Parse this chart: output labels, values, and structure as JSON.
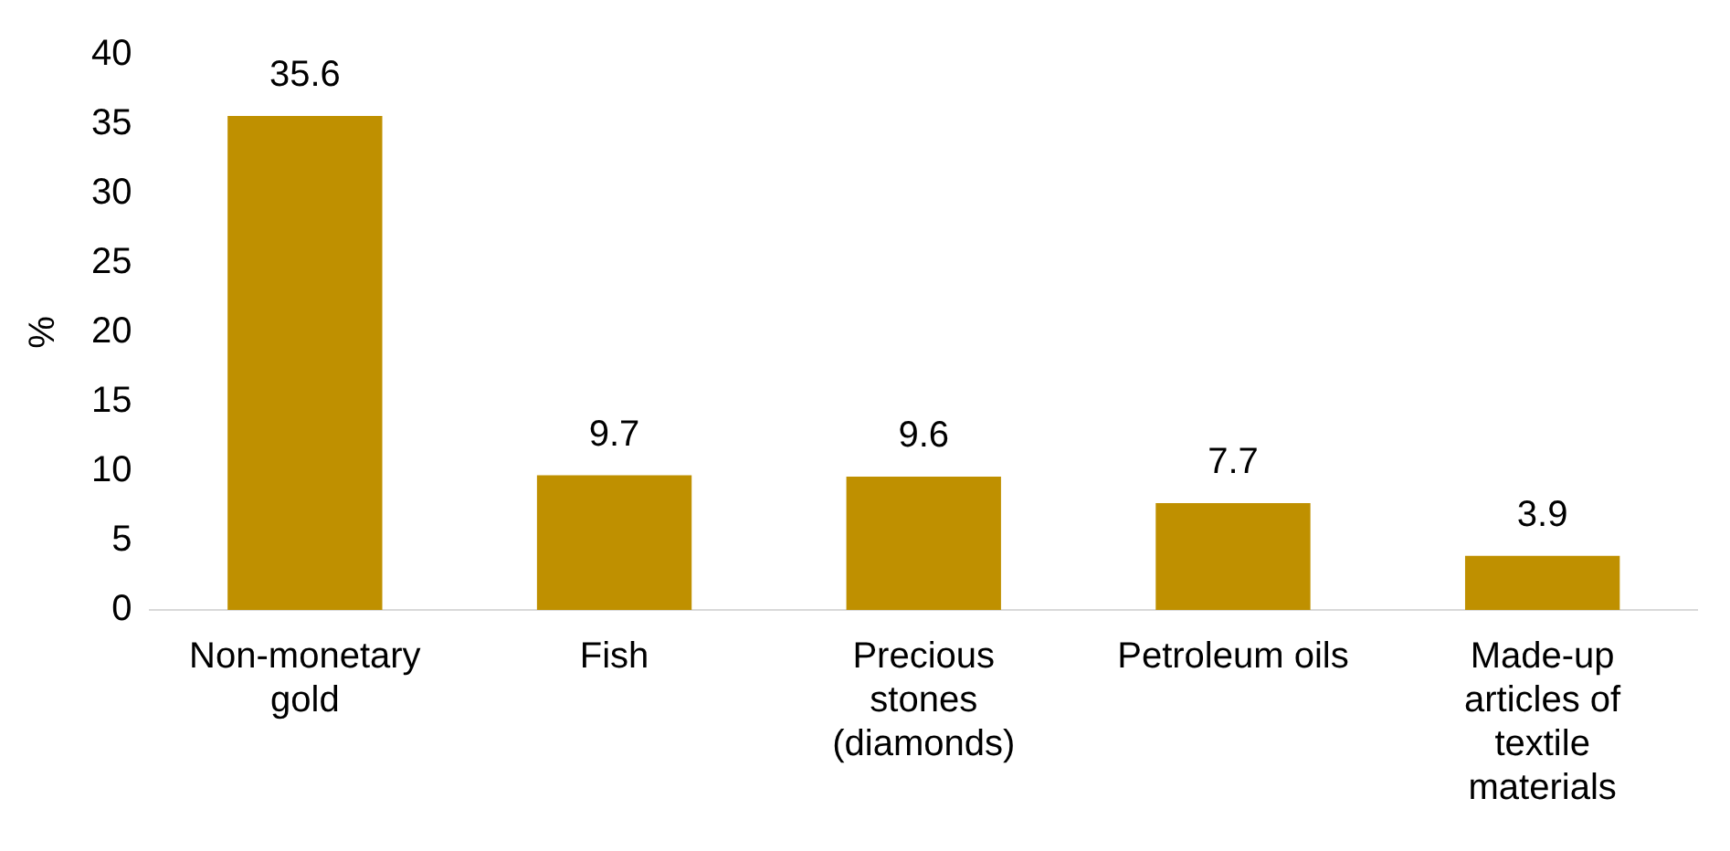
{
  "chart_data": {
    "type": "bar",
    "ylabel": "%",
    "categories": [
      "Non-monetary gold",
      "Fish",
      "Precious stones (diamonds)",
      "Petroleum oils",
      "Made-up articles of textile materials"
    ],
    "values": [
      35.6,
      9.7,
      9.6,
      7.7,
      3.9
    ],
    "color": "#bf9000",
    "ylim": [
      0,
      40
    ],
    "yticks": [
      0,
      5,
      10,
      15,
      20,
      25,
      30,
      35,
      40
    ],
    "grid": false,
    "legend": false,
    "data_labels": true
  }
}
